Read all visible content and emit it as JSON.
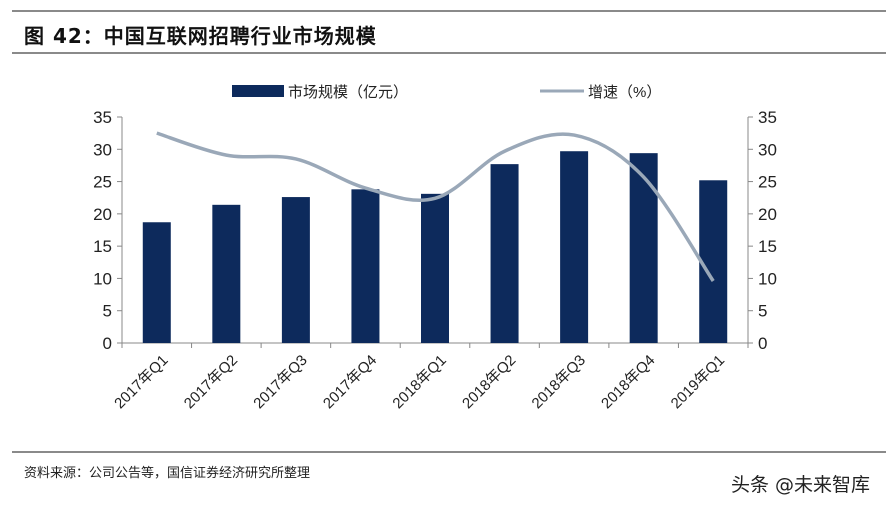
{
  "title": "图 42：中国互联网招聘行业市场规模",
  "source": "资料来源：公司公告等，国信证券经济研究所整理",
  "watermark": "头条 @未来智库",
  "chart_data": {
    "type": "bar+line",
    "title": "",
    "categories": [
      "2017年Q1",
      "2017年Q2",
      "2017年Q3",
      "2017年Q4",
      "2018年Q1",
      "2018年Q2",
      "2018年Q3",
      "2018年Q4",
      "2019年Q1"
    ],
    "series": [
      {
        "name": "市场规模（亿元）",
        "type": "bar",
        "axis": "left",
        "color": "#0d2a5c",
        "values": [
          18.7,
          21.4,
          22.6,
          23.8,
          23.1,
          27.7,
          29.7,
          29.4,
          25.2
        ]
      },
      {
        "name": "增速（%）",
        "type": "line",
        "smooth": true,
        "axis": "right",
        "color": "#9aa8b8",
        "values": [
          32.5,
          29.1,
          28.5,
          24.0,
          22.4,
          29.7,
          32.2,
          25.7,
          9.6
        ]
      }
    ],
    "y_left": {
      "min": 0,
      "max": 35,
      "ticks": [
        0,
        5,
        10,
        15,
        20,
        25,
        30,
        35
      ]
    },
    "y_right": {
      "min": 0,
      "max": 35,
      "ticks": [
        0,
        5,
        10,
        15,
        20,
        25,
        30,
        35
      ]
    },
    "grid": false,
    "legend": "top-center"
  }
}
